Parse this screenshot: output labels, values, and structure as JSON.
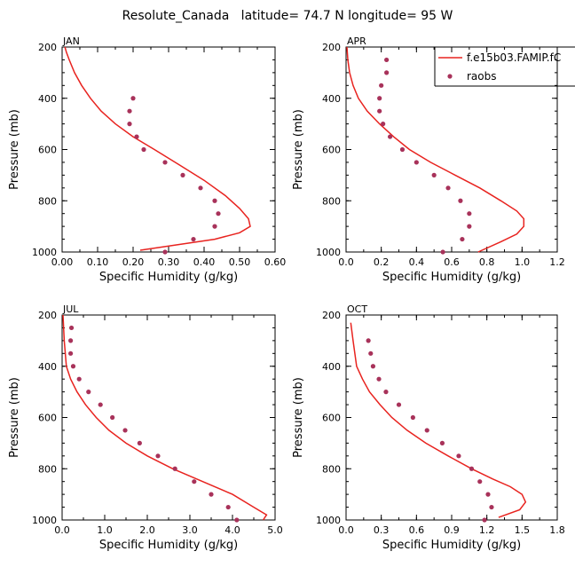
{
  "figure": {
    "title": "Resolute_Canada   latitude= 74.7 N longitude= 95 W",
    "xlabel": "Specific Humidity (g/kg)",
    "ylabel": "Pressure (mb)"
  },
  "colors": {
    "model": "#e8231f",
    "obs": "#a8325a"
  },
  "legend": {
    "placement": "top-right",
    "model_label": "f.e15b03.FAMIP.fC",
    "obs_label": "raobs"
  },
  "chart_data": [
    {
      "type": "line",
      "panel": "JAN",
      "xlim": [
        0,
        0.6
      ],
      "ylim": [
        200,
        1000
      ],
      "y_inverted": true,
      "xticks": [
        0,
        0.1,
        0.2,
        0.3,
        0.4,
        0.5,
        0.6
      ],
      "xtick_labels": [
        "0.00",
        "0.10",
        "0.20",
        "0.30",
        "0.40",
        "0.50",
        "0.60"
      ],
      "yticks": [
        200,
        400,
        600,
        800,
        1000
      ],
      "ytick_labels": [
        "200",
        "400",
        "600",
        "800",
        "1000"
      ],
      "xlabel": "Specific Humidity (g/kg)",
      "ylabel": "Pressure (mb)",
      "series": [
        {
          "name": "f.e15b03.FAMIP.fC",
          "kind": "line",
          "x": [
            0.22,
            0.43,
            0.5,
            0.53,
            0.525,
            0.5,
            0.46,
            0.4,
            0.33,
            0.26,
            0.2,
            0.15,
            0.11,
            0.08,
            0.055,
            0.035,
            0.02,
            0.012,
            0.008
          ],
          "y": [
            993,
            950,
            925,
            900,
            870,
            830,
            780,
            720,
            660,
            600,
            550,
            500,
            450,
            400,
            350,
            300,
            250,
            220,
            200
          ]
        },
        {
          "name": "raobs",
          "kind": "scatter",
          "x": [
            0.29,
            0.37,
            0.43,
            0.44,
            0.43,
            0.39,
            0.34,
            0.29,
            0.23,
            0.21,
            0.19,
            0.19,
            0.2
          ],
          "y": [
            1000,
            950,
            900,
            850,
            800,
            750,
            700,
            650,
            600,
            550,
            500,
            450,
            400
          ]
        }
      ]
    },
    {
      "type": "line",
      "panel": "APR",
      "xlim": [
        0,
        1.2
      ],
      "ylim": [
        200,
        1000
      ],
      "y_inverted": true,
      "xticks": [
        0,
        0.2,
        0.4,
        0.6,
        0.8,
        1.0,
        1.2
      ],
      "xtick_labels": [
        "0.0",
        "0.2",
        "0.4",
        "0.6",
        "0.8",
        "1.0",
        "1.2"
      ],
      "yticks": [
        200,
        400,
        600,
        800,
        1000
      ],
      "ytick_labels": [
        "200",
        "400",
        "600",
        "800",
        "1000"
      ],
      "xlabel": "Specific Humidity (g/kg)",
      "ylabel": "Pressure (mb)",
      "series": [
        {
          "name": "f.e15b03.FAMIP.fC",
          "kind": "line",
          "x": [
            0.75,
            0.88,
            0.97,
            1.01,
            1.01,
            0.97,
            0.88,
            0.76,
            0.62,
            0.48,
            0.36,
            0.27,
            0.19,
            0.12,
            0.07,
            0.04,
            0.02,
            0.01,
            0.005
          ],
          "y": [
            1000,
            960,
            930,
            900,
            870,
            840,
            800,
            750,
            700,
            650,
            600,
            550,
            500,
            450,
            400,
            350,
            300,
            250,
            200
          ]
        },
        {
          "name": "raobs",
          "kind": "scatter",
          "x": [
            0.55,
            0.66,
            0.7,
            0.7,
            0.65,
            0.58,
            0.5,
            0.4,
            0.32,
            0.25,
            0.21,
            0.19,
            0.19,
            0.2,
            0.23,
            0.23
          ],
          "y": [
            1000,
            950,
            900,
            850,
            800,
            750,
            700,
            650,
            600,
            550,
            500,
            450,
            400,
            350,
            300,
            250
          ]
        }
      ]
    },
    {
      "type": "line",
      "panel": "JUL",
      "xlim": [
        0,
        5.0
      ],
      "ylim": [
        200,
        1000
      ],
      "y_inverted": true,
      "xticks": [
        0,
        1,
        2,
        3,
        4,
        5
      ],
      "xtick_labels": [
        "0.0",
        "1.0",
        "2.0",
        "3.0",
        "4.0",
        "5.0"
      ],
      "yticks": [
        200,
        400,
        600,
        800,
        1000
      ],
      "ytick_labels": [
        "200",
        "400",
        "600",
        "800",
        "1000"
      ],
      "xlabel": "Specific Humidity (g/kg)",
      "ylabel": "Pressure (mb)",
      "series": [
        {
          "name": "f.e15b03.FAMIP.fC",
          "kind": "line",
          "x": [
            4.72,
            4.8,
            4.5,
            4.0,
            3.3,
            2.6,
            2.0,
            1.5,
            1.1,
            0.8,
            0.55,
            0.35,
            0.2,
            0.1,
            0.05,
            0.02
          ],
          "y": [
            1000,
            980,
            950,
            900,
            850,
            800,
            750,
            700,
            650,
            600,
            550,
            500,
            450,
            400,
            300,
            200
          ]
        },
        {
          "name": "raobs",
          "kind": "scatter",
          "x": [
            4.1,
            3.9,
            3.5,
            3.1,
            2.65,
            2.25,
            1.82,
            1.48,
            1.18,
            0.9,
            0.62,
            0.4,
            0.26,
            0.2,
            0.2,
            0.22
          ],
          "y": [
            1000,
            950,
            900,
            850,
            800,
            750,
            700,
            650,
            600,
            550,
            500,
            450,
            400,
            350,
            300,
            250
          ]
        }
      ]
    },
    {
      "type": "line",
      "panel": "OCT",
      "xlim": [
        0,
        1.8
      ],
      "ylim": [
        200,
        1000
      ],
      "y_inverted": true,
      "xticks": [
        0,
        0.3,
        0.6,
        0.9,
        1.2,
        1.5,
        1.8
      ],
      "xtick_labels": [
        "0.0",
        "0.3",
        "0.6",
        "0.9",
        "1.2",
        "1.5",
        "1.8"
      ],
      "yticks": [
        200,
        400,
        600,
        800,
        1000
      ],
      "ytick_labels": [
        "200",
        "400",
        "600",
        "800",
        "1000"
      ],
      "xlabel": "Specific Humidity (g/kg)",
      "ylabel": "Pressure (mb)",
      "series": [
        {
          "name": "f.e15b03.FAMIP.fC",
          "kind": "line",
          "x": [
            1.3,
            1.48,
            1.53,
            1.5,
            1.4,
            1.25,
            1.07,
            0.87,
            0.68,
            0.52,
            0.39,
            0.29,
            0.2,
            0.14,
            0.09,
            0.06,
            0.04
          ],
          "y": [
            990,
            960,
            930,
            900,
            870,
            840,
            800,
            750,
            700,
            650,
            600,
            550,
            500,
            450,
            400,
            300,
            230
          ]
        },
        {
          "name": "raobs",
          "kind": "scatter",
          "x": [
            1.18,
            1.24,
            1.21,
            1.14,
            1.07,
            0.96,
            0.82,
            0.69,
            0.57,
            0.45,
            0.34,
            0.28,
            0.23,
            0.21,
            0.19
          ],
          "y": [
            1000,
            950,
            900,
            850,
            800,
            750,
            700,
            650,
            600,
            550,
            500,
            450,
            400,
            350,
            300
          ]
        }
      ]
    }
  ]
}
